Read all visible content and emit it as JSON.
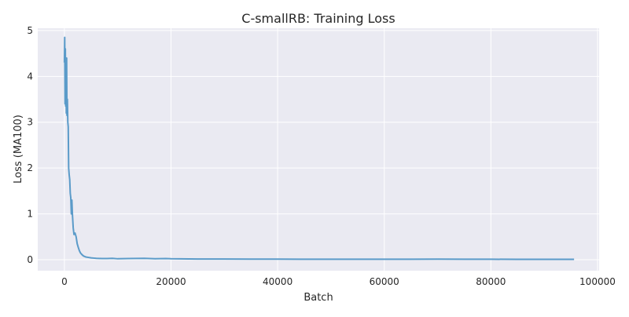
{
  "chart_data": {
    "type": "line",
    "title": "C-smallRB: Training Loss",
    "xlabel": "Batch",
    "ylabel": "Loss (MA100)",
    "xlim": [
      -5000,
      100300
    ],
    "ylim": [
      -0.24,
      5.05
    ],
    "xticks": [
      0,
      20000,
      40000,
      60000,
      80000,
      100000
    ],
    "yticks": [
      0,
      1,
      2,
      3,
      4,
      5
    ],
    "grid": true,
    "legend": "none",
    "colors": {
      "line": "#5b9bc9",
      "plot_bg": "#eaeaf2",
      "grid": "#ffffff"
    },
    "series": [
      {
        "x": [
          0,
          60,
          120,
          180,
          240,
          300,
          360,
          420,
          480,
          560,
          640,
          720,
          800,
          900,
          1000,
          1100,
          1200,
          1300,
          1400,
          1500,
          1650,
          1800,
          2000,
          2200,
          2400,
          2600,
          2800,
          3000,
          3300,
          3600,
          4000,
          4500,
          5000,
          5500,
          6000,
          7000,
          8000,
          9000,
          10000,
          12000,
          15000,
          17000,
          19000,
          20000,
          25000,
          30000,
          35000,
          40000,
          45000,
          50000,
          55000,
          60000,
          65000,
          70000,
          75000,
          80000,
          85000,
          90000,
          95600
        ],
        "y": [
          4.3,
          4.85,
          3.4,
          4.6,
          3.35,
          4.4,
          3.2,
          4.4,
          3.15,
          3.5,
          3.0,
          2.9,
          2.0,
          1.85,
          1.75,
          1.45,
          1.35,
          1.0,
          1.3,
          1.0,
          0.7,
          0.55,
          0.58,
          0.5,
          0.35,
          0.27,
          0.2,
          0.15,
          0.11,
          0.08,
          0.06,
          0.05,
          0.04,
          0.035,
          0.03,
          0.025,
          0.025,
          0.03,
          0.02,
          0.025,
          0.03,
          0.02,
          0.025,
          0.02,
          0.015,
          0.015,
          0.012,
          0.012,
          0.01,
          0.01,
          0.01,
          0.01,
          0.01,
          0.012,
          0.01,
          0.01,
          0.008,
          0.008,
          0.008
        ]
      }
    ]
  }
}
